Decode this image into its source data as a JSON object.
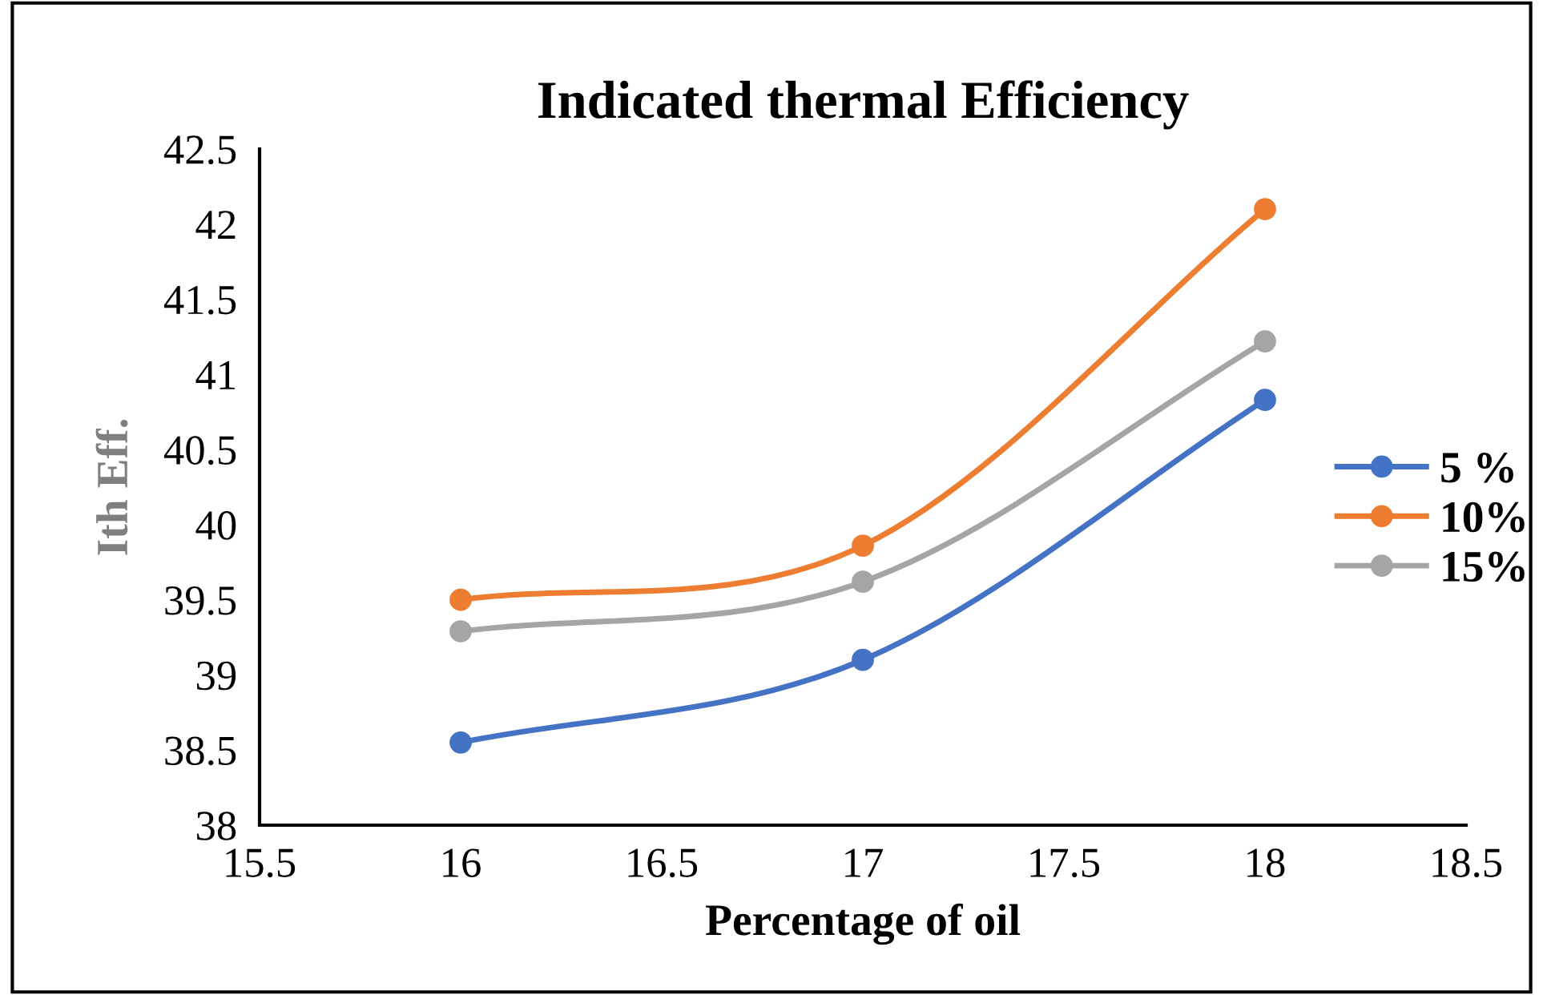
{
  "chart_data": {
    "type": "line",
    "title": "Indicated thermal Efficiency",
    "xlabel": "Percentage of oil",
    "ylabel": "Ith Eff.",
    "x": [
      16,
      17,
      18
    ],
    "series": [
      {
        "name": "5 %",
        "color": "#4472c4",
        "values": [
          38.55,
          39.1,
          40.83
        ]
      },
      {
        "name": "10%",
        "color": "#ed7d31",
        "values": [
          39.5,
          39.86,
          42.1
        ]
      },
      {
        "name": "15%",
        "color": "#a5a5a5",
        "values": [
          39.29,
          39.62,
          41.22
        ]
      }
    ],
    "xlim": [
      15.5,
      18.5
    ],
    "xticks": [
      15.5,
      16,
      16.5,
      17,
      17.5,
      18,
      18.5
    ],
    "ylim": [
      38,
      42.5
    ],
    "yticks": [
      38,
      38.5,
      39,
      39.5,
      40,
      40.5,
      41,
      41.5,
      42,
      42.5
    ],
    "grid": false,
    "legend": "right",
    "marker": "circle",
    "line_style": "solid"
  }
}
